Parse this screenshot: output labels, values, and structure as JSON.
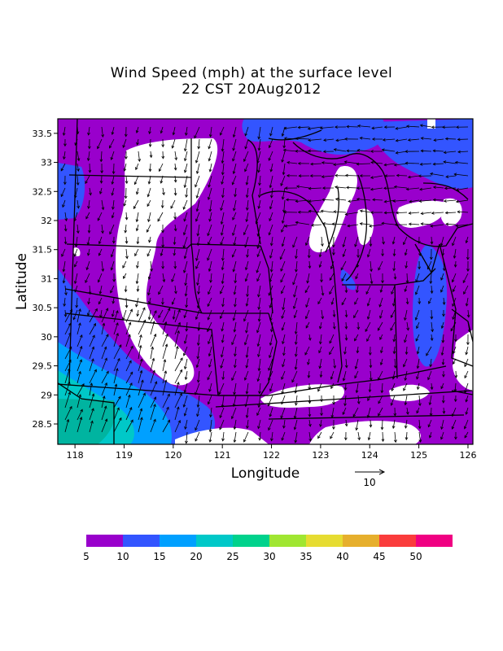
{
  "title": {
    "line1": "Wind Speed (mph) at the surface level",
    "line2": "22 CST 20Aug2012"
  },
  "axes": {
    "xlabel": "Longitude",
    "ylabel": "Latitude",
    "xticks": [
      "118",
      "119",
      "120",
      "121",
      "122",
      "123",
      "124",
      "125",
      "126"
    ],
    "xtick_values": [
      118,
      119,
      120,
      121,
      122,
      123,
      124,
      125,
      126
    ],
    "yticks": [
      "28.5",
      "29",
      "29.5",
      "30",
      "30.5",
      "31",
      "31.5",
      "32",
      "32.5",
      "33",
      "33.5"
    ],
    "ytick_values": [
      28.5,
      29,
      29.5,
      30,
      30.5,
      31,
      31.5,
      32,
      32.5,
      33,
      33.5
    ],
    "xlim": [
      117.65,
      126.1
    ],
    "ylim": [
      28.15,
      33.75
    ]
  },
  "reference_vector": {
    "label": "10"
  },
  "colorbar": {
    "labels": [
      "5",
      "10",
      "15",
      "20",
      "25",
      "30",
      "35",
      "40",
      "45",
      "50"
    ],
    "colors": [
      "#9900cc",
      "#3355ff",
      "#00a0ff",
      "#00c8c8",
      "#00d28c",
      "#a0e632",
      "#e6dc32",
      "#e6af2d",
      "#fa3c3c",
      "#f00082"
    ]
  },
  "colors": {
    "low_wind": "#ffffff",
    "base": "#9900cc",
    "blue": "#3355ff",
    "cyan": "#00c8c8",
    "teal": "#00b4e6"
  }
}
